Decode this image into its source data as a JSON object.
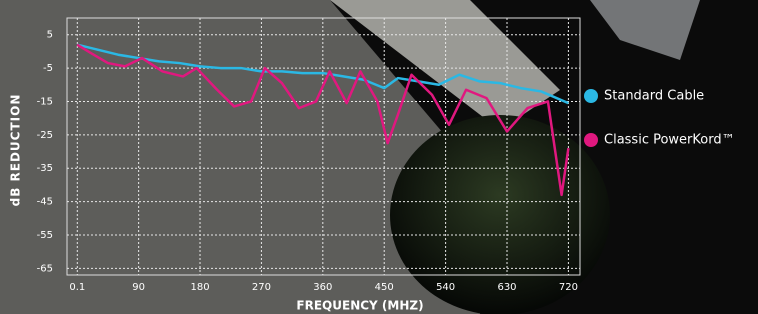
{
  "chart_data": {
    "type": "line",
    "xlabel": "FREQUENCY (MHZ)",
    "ylabel": "dB REDUCTION",
    "xlim": [
      -15,
      737
    ],
    "ylim": [
      -67,
      10
    ],
    "xticks": [
      0.1,
      90,
      180,
      270,
      360,
      450,
      540,
      630,
      720
    ],
    "yticks": [
      5,
      -5,
      -15,
      -25,
      -35,
      -45,
      -55,
      -65
    ],
    "grid": true,
    "legend": "right",
    "series": [
      {
        "name": "Standard Cable",
        "color": "#2bb8e4",
        "x": [
          0,
          30,
          60,
          90,
          120,
          150,
          180,
          210,
          240,
          270,
          300,
          330,
          360,
          390,
          420,
          450,
          470,
          500,
          530,
          560,
          590,
          620,
          650,
          680,
          720
        ],
        "values": [
          2,
          0.5,
          -1,
          -2,
          -3,
          -3.5,
          -4.5,
          -5,
          -5,
          -6,
          -6,
          -6.5,
          -6.5,
          -7.5,
          -8.5,
          -11,
          -8,
          -9,
          -10,
          -7,
          -9,
          -9.5,
          -11,
          -12,
          -15.5
        ]
      },
      {
        "name": "Classic PowerKord™",
        "color": "#e0187f",
        "x": [
          0,
          20,
          45,
          70,
          95,
          125,
          155,
          175,
          205,
          230,
          255,
          275,
          300,
          325,
          350,
          370,
          395,
          415,
          440,
          455,
          470,
          490,
          520,
          545,
          570,
          600,
          630,
          660,
          690,
          710,
          720
        ],
        "values": [
          2,
          -0.5,
          -3.5,
          -4.5,
          -2,
          -6,
          -7.5,
          -5,
          -11.5,
          -16.5,
          -15,
          -5,
          -9.5,
          -17,
          -15,
          -6,
          -15.5,
          -6,
          -15,
          -27.5,
          -19,
          -7,
          -13,
          -22,
          -11.5,
          -14,
          -24,
          -17,
          -15,
          -43,
          -29
        ]
      }
    ]
  }
}
